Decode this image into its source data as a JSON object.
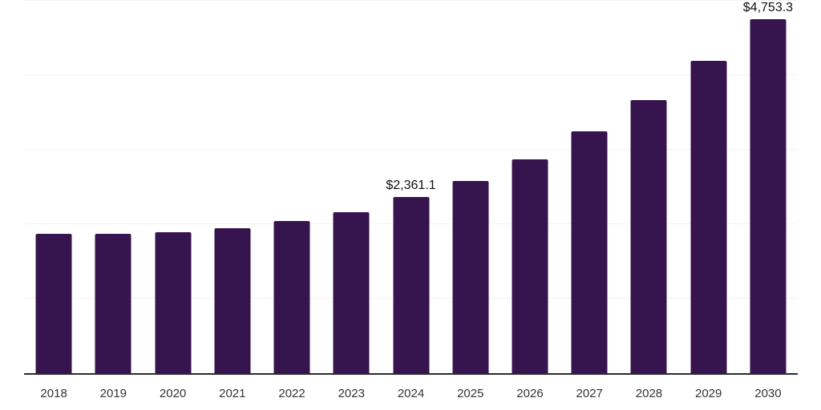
{
  "chart": {
    "colors": {
      "background": "#ffffff",
      "bar": "#36154e",
      "axis_line": "#2b2b2b",
      "gridline": "#f2f2f2",
      "data_label": "#111111",
      "tick_label": "#333333"
    }
  },
  "chart_data": {
    "type": "bar",
    "title": "",
    "xlabel": "",
    "ylabel": "",
    "legend_position": "none",
    "grid": "horizontal",
    "ylim": [
      0,
      5000
    ],
    "gridline_values": [
      1000,
      2000,
      3000,
      4000,
      5000
    ],
    "categories": [
      "2018",
      "2019",
      "2020",
      "2021",
      "2022",
      "2023",
      "2024",
      "2025",
      "2026",
      "2027",
      "2028",
      "2029",
      "2030"
    ],
    "values": [
      1870,
      1876,
      1892,
      1945,
      2038,
      2160,
      2361.1,
      2585,
      2875,
      3250,
      3665,
      4190,
      4753.3
    ],
    "bar_labels": [
      "",
      "",
      "",
      "",
      "",
      "",
      "$2,361.1",
      "",
      "",
      "",
      "",
      "",
      "$4,753.3"
    ]
  }
}
